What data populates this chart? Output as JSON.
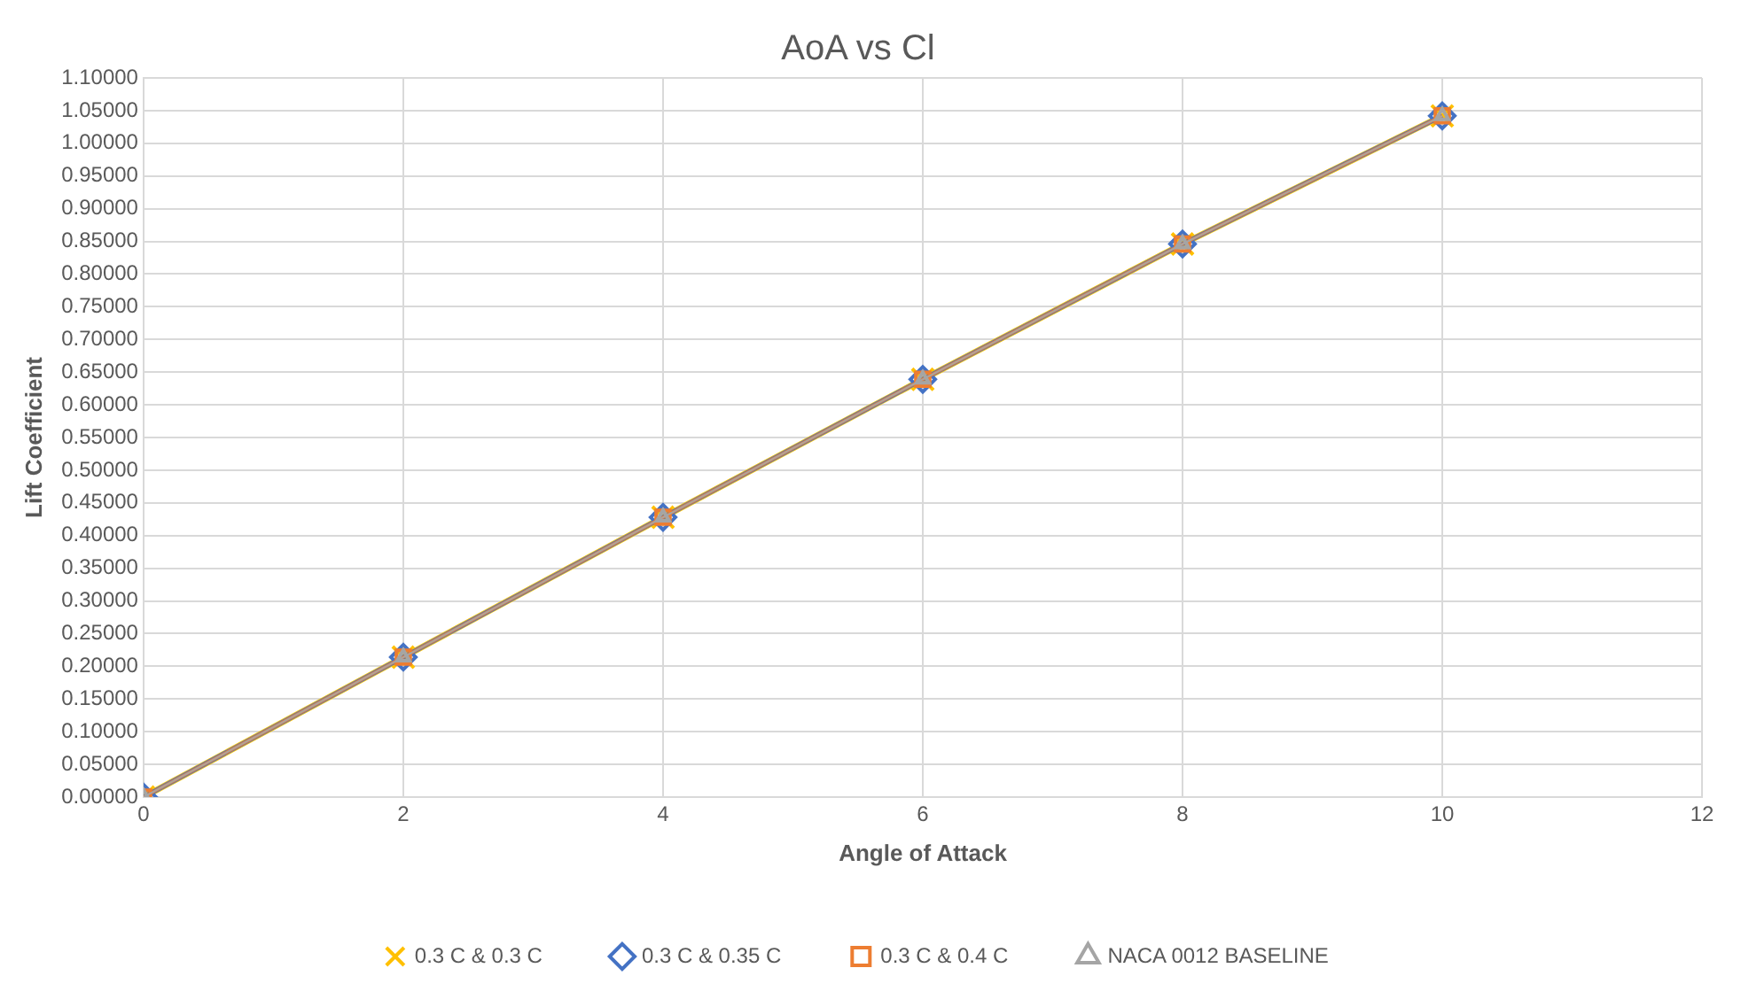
{
  "chart_data": {
    "type": "line",
    "title": "AoA vs Cl",
    "xlabel": "Angle of Attack",
    "ylabel": "Lift Coefficient",
    "x": [
      0,
      2,
      4,
      6,
      8,
      10
    ],
    "series": [
      {
        "name": "0.3 C & 0.3 C",
        "color": "#ffc000",
        "marker": "cross",
        "values": [
          0,
          0.214,
          0.428,
          0.639,
          0.846,
          1.042
        ]
      },
      {
        "name": "0.3 C & 0.35 C",
        "color": "#4472c4",
        "marker": "diamond",
        "values": [
          0,
          0.214,
          0.428,
          0.639,
          0.846,
          1.042
        ]
      },
      {
        "name": "0.3 C & 0.4 C",
        "color": "#ed7d31",
        "marker": "square",
        "values": [
          0,
          0.214,
          0.428,
          0.639,
          0.846,
          1.042
        ]
      },
      {
        "name": "NACA 0012 BASELINE",
        "color": "#a5a5a5",
        "marker": "triangle",
        "values": [
          0,
          0.214,
          0.428,
          0.639,
          0.846,
          1.042
        ]
      }
    ],
    "xlim": [
      0,
      12
    ],
    "xticks": [
      0,
      2,
      4,
      6,
      8,
      10,
      12
    ],
    "ylim": [
      0,
      1.1
    ],
    "yticks": [
      {
        "value": 0,
        "label": "0.00000"
      },
      {
        "value": 0.05,
        "label": "0.05000"
      },
      {
        "value": 0.1,
        "label": "0.10000"
      },
      {
        "value": 0.15,
        "label": "0.15000"
      },
      {
        "value": 0.2,
        "label": "0.20000"
      },
      {
        "value": 0.25,
        "label": "0.25000"
      },
      {
        "value": 0.3,
        "label": "0.30000"
      },
      {
        "value": 0.35,
        "label": "0.35000"
      },
      {
        "value": 0.4,
        "label": "0.40000"
      },
      {
        "value": 0.45,
        "label": "0.45000"
      },
      {
        "value": 0.5,
        "label": "0.50000"
      },
      {
        "value": 0.55,
        "label": "0.55000"
      },
      {
        "value": 0.6,
        "label": "0.60000"
      },
      {
        "value": 0.65,
        "label": "0.65000"
      },
      {
        "value": 0.7,
        "label": "0.70000"
      },
      {
        "value": 0.75,
        "label": "0.75000"
      },
      {
        "value": 0.8,
        "label": "0.80000"
      },
      {
        "value": 0.85,
        "label": "0.85000"
      },
      {
        "value": 0.9,
        "label": "0.90000"
      },
      {
        "value": 0.95,
        "label": "0.95000"
      },
      {
        "value": 1,
        "label": "1.00000"
      },
      {
        "value": 1.05,
        "label": "1.05000"
      },
      {
        "value": 1.1,
        "label": "1.10000"
      }
    ],
    "grid": true,
    "legend": "bottom",
    "line_style": "solid"
  }
}
